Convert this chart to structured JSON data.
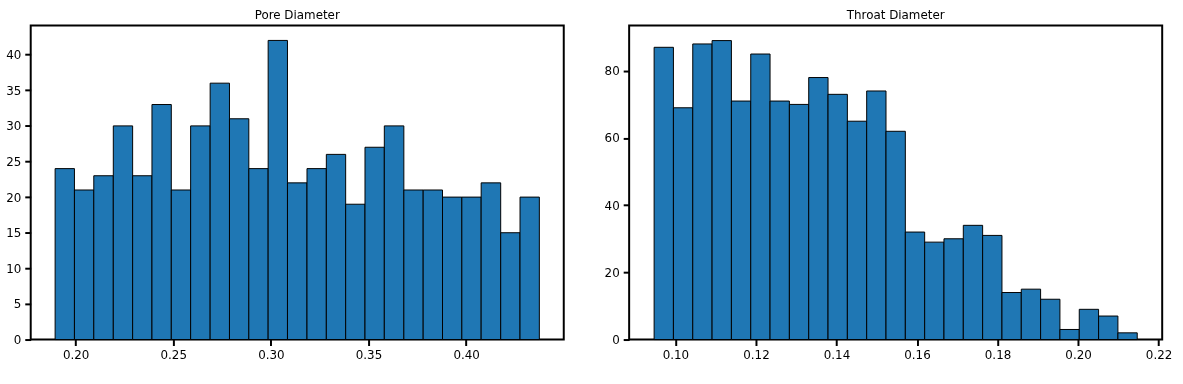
{
  "chart_data": [
    {
      "type": "histogram",
      "title": "Pore Diameter",
      "color": "#1f77b4",
      "bins": [
        0.1895,
        0.1994,
        0.2093,
        0.2193,
        0.2292,
        0.2391,
        0.249,
        0.2589,
        0.2689,
        0.2788,
        0.2887,
        0.2986,
        0.3085,
        0.3185,
        0.3284,
        0.3383,
        0.3482,
        0.3581,
        0.3681,
        0.378,
        0.3879,
        0.3978,
        0.4077,
        0.4177,
        0.4276,
        0.4375
      ],
      "values": [
        24,
        21,
        23,
        30,
        23,
        33,
        21,
        30,
        36,
        31,
        24,
        42,
        22,
        24,
        26,
        19,
        27,
        30,
        21,
        21,
        20,
        20,
        22,
        15,
        20
      ],
      "xlim": [
        0.177,
        0.45
      ],
      "xticks": [
        {
          "value": 0.2,
          "label": "0.20"
        },
        {
          "value": 0.25,
          "label": "0.25"
        },
        {
          "value": 0.3,
          "label": "0.30"
        },
        {
          "value": 0.35,
          "label": "0.35"
        },
        {
          "value": 0.4,
          "label": "0.40"
        }
      ],
      "ylim": [
        0,
        44.1
      ],
      "yticks": [
        0,
        5,
        10,
        15,
        20,
        25,
        30,
        35,
        40
      ],
      "grid": false
    },
    {
      "type": "histogram",
      "title": "Throat Diameter",
      "color": "#1f77b4",
      "bins": [
        0.0947,
        0.0995,
        0.1043,
        0.1091,
        0.1139,
        0.1187,
        0.1235,
        0.1283,
        0.1331,
        0.1379,
        0.1427,
        0.1475,
        0.1523,
        0.1571,
        0.1619,
        0.1667,
        0.1715,
        0.1763,
        0.1811,
        0.1859,
        0.1907,
        0.1955,
        0.2003,
        0.2051,
        0.2099,
        0.2147
      ],
      "values": [
        87,
        69,
        88,
        89,
        71,
        85,
        71,
        70,
        78,
        73,
        65,
        74,
        62,
        32,
        29,
        30,
        34,
        31,
        14,
        15,
        12,
        3,
        9,
        7,
        2
      ],
      "xlim": [
        0.0885,
        0.2209
      ],
      "xticks": [
        {
          "value": 0.1,
          "label": "0.10"
        },
        {
          "value": 0.12,
          "label": "0.12"
        },
        {
          "value": 0.14,
          "label": "0.14"
        },
        {
          "value": 0.16,
          "label": "0.16"
        },
        {
          "value": 0.18,
          "label": "0.18"
        },
        {
          "value": 0.2,
          "label": "0.20"
        },
        {
          "value": 0.22,
          "label": "0.22"
        }
      ],
      "ylim": [
        0,
        93.5
      ],
      "yticks": [
        0,
        20,
        40,
        60,
        80
      ],
      "grid": false
    }
  ]
}
